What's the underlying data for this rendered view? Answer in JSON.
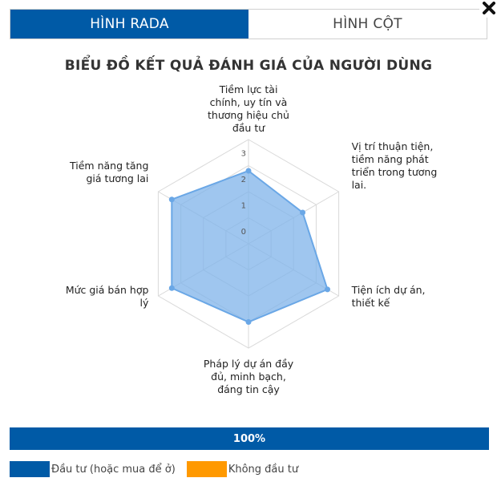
{
  "tabs": [
    {
      "label": "HÌNH RADA",
      "active": true
    },
    {
      "label": "HÌNH CỘT",
      "active": false
    }
  ],
  "close_icon": "close-icon",
  "chart_data": {
    "type": "radar",
    "title": "BIỂU ĐỒ KẾT QUẢ ĐÁNH GIÁ CỦA NGƯỜI DÙNG",
    "axes": [
      {
        "label_lines": [
          "Tiềm lực tài",
          "chính, uy tín và",
          "thương hiệu chủ",
          "đầu tư"
        ]
      },
      {
        "label_lines": [
          "Vị trí thuận tiện,",
          "tiềm năng phát",
          "triển trong tương",
          "lai."
        ]
      },
      {
        "label_lines": [
          "Tiện ích dự án,",
          "thiết kế"
        ]
      },
      {
        "label_lines": [
          "Pháp lý dự án đầy",
          "đủ, minh bạch,",
          "đáng tin cậy"
        ]
      },
      {
        "label_lines": [
          "Mức giá bán hợp",
          "lý"
        ]
      },
      {
        "label_lines": [
          "Tiềm năng tăng",
          "giá tương lai"
        ]
      }
    ],
    "ticks": [
      "0",
      "1",
      "2",
      "3"
    ],
    "rmax": 4,
    "series": [
      {
        "values": [
          2.8,
          2.4,
          3.5,
          3.0,
          3.4,
          3.4
        ],
        "color": "#7fb3ea",
        "stroke": "#6aa7e6"
      }
    ],
    "grid": true
  },
  "progress": {
    "label": "100%",
    "value": 1.0,
    "color": "#005aa6"
  },
  "legend": [
    {
      "label": "Đầu tư (hoặc mua để ở)",
      "color": "#005aa6"
    },
    {
      "label": "Không đầu tư",
      "color": "#ff9900"
    }
  ]
}
